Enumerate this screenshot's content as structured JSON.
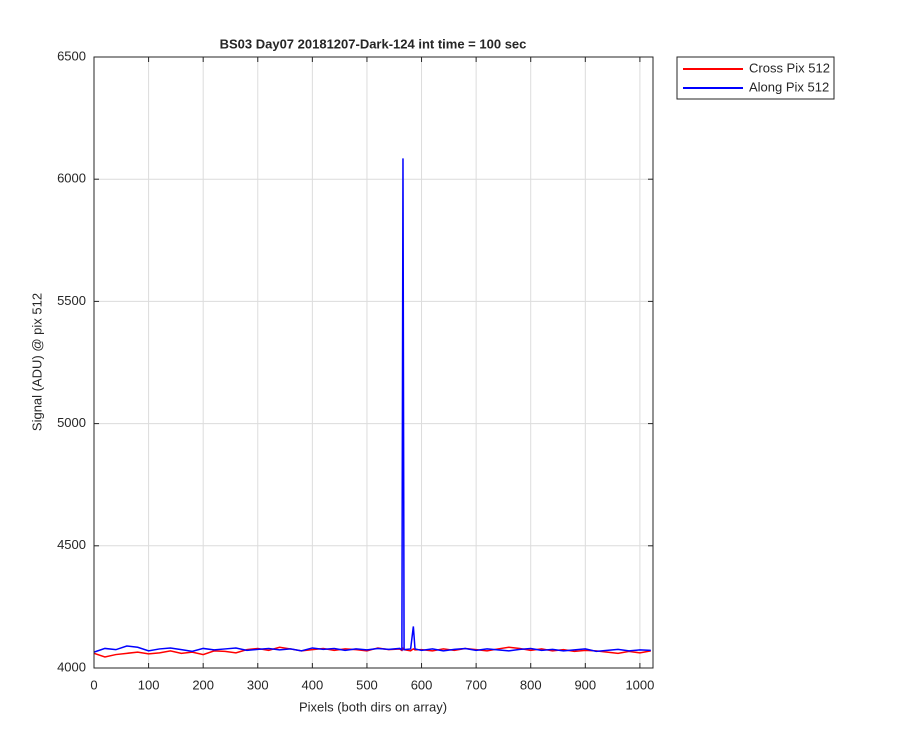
{
  "chart_data": {
    "type": "line",
    "title": "BS03 Day07 20181207-Dark-124 int time = 100 sec",
    "xlabel": "Pixels (both dirs on array)",
    "ylabel": "Signal (ADU) @ pix 512",
    "x": [
      0,
      20,
      40,
      60,
      80,
      100,
      120,
      140,
      160,
      180,
      200,
      220,
      240,
      260,
      280,
      300,
      320,
      340,
      360,
      380,
      400,
      420,
      440,
      460,
      480,
      500,
      520,
      540,
      560,
      564,
      566,
      568,
      580,
      585,
      588,
      600,
      620,
      640,
      660,
      680,
      700,
      720,
      740,
      760,
      780,
      800,
      820,
      840,
      860,
      880,
      900,
      920,
      940,
      960,
      980,
      1000,
      1020
    ],
    "series": [
      {
        "name": "Cross Pix 512",
        "color": "#ff0000",
        "values": [
          4060,
          4045,
          4055,
          4060,
          4065,
          4058,
          4062,
          4070,
          4060,
          4065,
          4055,
          4070,
          4068,
          4062,
          4075,
          4080,
          4072,
          4085,
          4078,
          4070,
          4075,
          4080,
          4072,
          4078,
          4075,
          4070,
          4082,
          4075,
          4078,
          4072,
          4080,
          4075,
          4070,
          4078,
          4074,
          4075,
          4070,
          4078,
          4072,
          4080,
          4075,
          4070,
          4078,
          4085,
          4080,
          4072,
          4078,
          4070,
          4075,
          4068,
          4072,
          4070,
          4065,
          4060,
          4068,
          4062,
          4070
        ]
      },
      {
        "name": "Along Pix 512",
        "color": "#0000ff",
        "values": [
          4065,
          4080,
          4075,
          4090,
          4085,
          4070,
          4078,
          4082,
          4075,
          4068,
          4080,
          4074,
          4078,
          4082,
          4072,
          4076,
          4080,
          4074,
          4078,
          4070,
          4082,
          4076,
          4080,
          4072,
          4078,
          4074,
          4080,
          4076,
          4080,
          4075,
          6085,
          4075,
          4078,
          4170,
          4078,
          4072,
          4078,
          4070,
          4076,
          4080,
          4072,
          4078,
          4074,
          4070,
          4076,
          4080,
          4072,
          4076,
          4070,
          4074,
          4078,
          4068,
          4072,
          4076,
          4070,
          4074,
          4072
        ]
      }
    ],
    "xlim": [
      0,
      1024
    ],
    "xticks": [
      0,
      100,
      200,
      300,
      400,
      500,
      600,
      700,
      800,
      900,
      1000
    ],
    "ylim": [
      4000,
      6500
    ],
    "yticks": [
      4000,
      4500,
      5000,
      5500,
      6000,
      6500
    ],
    "grid": true,
    "legend": "northeastoutside"
  }
}
